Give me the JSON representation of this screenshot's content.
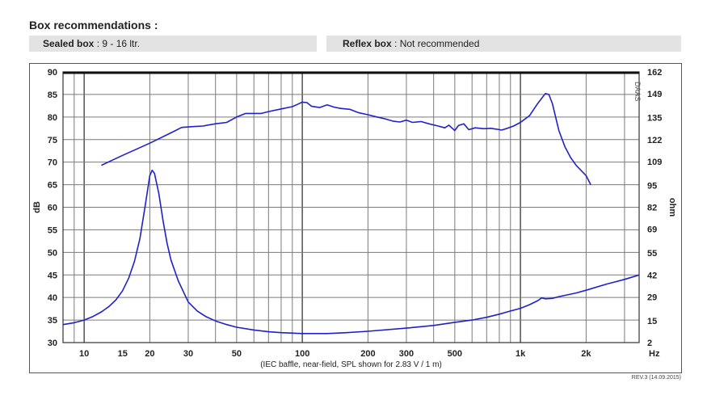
{
  "heading": "Box  recommendations :",
  "sealed": {
    "label": "Sealed box",
    "value": " : 9 - 16 ltr."
  },
  "reflex": {
    "label": "Reflex box",
    "value": " : Not recommended"
  },
  "revision": "REV.3 (14.09.2015)",
  "chart_data": {
    "type": "line",
    "xscale": "log",
    "xlim": [
      8,
      3500
    ],
    "ylim_left": [
      30,
      90
    ],
    "ylim_right": [
      2,
      162
    ],
    "ylabel_left": "dB",
    "ylabel_right": "ohm",
    "xunit": "Hz",
    "caption": "(IEC baffle, near-field, SPL shown for 2.83 V / 1 m)",
    "watermark": "DAAS",
    "x_ticks": [
      {
        "value": 10,
        "label": "10"
      },
      {
        "value": 15,
        "label": "15"
      },
      {
        "value": 20,
        "label": "20"
      },
      {
        "value": 30,
        "label": "30"
      },
      {
        "value": 50,
        "label": "50"
      },
      {
        "value": 100,
        "label": "100"
      },
      {
        "value": 200,
        "label": "200"
      },
      {
        "value": 300,
        "label": "300"
      },
      {
        "value": 500,
        "label": "500"
      },
      {
        "value": 1000,
        "label": "1k"
      },
      {
        "value": 2000,
        "label": "2k"
      }
    ],
    "y_ticks_left": [
      90,
      85,
      80,
      75,
      70,
      65,
      60,
      55,
      50,
      45,
      40,
      35,
      30
    ],
    "y_ticks_right": [
      {
        "value": 162,
        "label": "162"
      },
      {
        "value": 149,
        "label": "149"
      },
      {
        "value": 135,
        "label": "135"
      },
      {
        "value": 122,
        "label": "122"
      },
      {
        "value": 109,
        "label": "109"
      },
      {
        "value": 95,
        "label": "95"
      },
      {
        "value": 82,
        "label": "82"
      },
      {
        "value": 69,
        "label": "69"
      },
      {
        "value": 55,
        "label": "55"
      },
      {
        "value": 42,
        "label": "42"
      },
      {
        "value": 29,
        "label": "29"
      },
      {
        "value": 15,
        "label": "15"
      },
      {
        "value": 2,
        "label": "2"
      }
    ],
    "grid": true,
    "series": [
      {
        "color": "#1e22c8",
        "axis": "left",
        "points": [
          [
            12,
            69.3
          ],
          [
            15,
            71.5
          ],
          [
            20,
            74.2
          ],
          [
            25,
            76.5
          ],
          [
            28,
            77.7
          ],
          [
            32,
            77.9
          ],
          [
            35,
            78
          ],
          [
            40,
            78.5
          ],
          [
            45,
            78.8
          ],
          [
            50,
            80
          ],
          [
            55,
            80.8
          ],
          [
            60,
            80.8
          ],
          [
            65,
            80.8
          ],
          [
            70,
            81.2
          ],
          [
            80,
            81.8
          ],
          [
            90,
            82.3
          ],
          [
            95,
            82.8
          ],
          [
            100,
            83.3
          ],
          [
            105,
            83.2
          ],
          [
            110,
            82.4
          ],
          [
            120,
            82.1
          ],
          [
            130,
            82.7
          ],
          [
            140,
            82.2
          ],
          [
            150,
            81.9
          ],
          [
            165,
            81.7
          ],
          [
            180,
            81
          ],
          [
            200,
            80.5
          ],
          [
            220,
            80
          ],
          [
            240,
            79.6
          ],
          [
            260,
            79.1
          ],
          [
            280,
            78.9
          ],
          [
            300,
            79.3
          ],
          [
            320,
            78.8
          ],
          [
            350,
            79
          ],
          [
            380,
            78.5
          ],
          [
            420,
            78
          ],
          [
            450,
            77.6
          ],
          [
            470,
            78.2
          ],
          [
            500,
            77
          ],
          [
            520,
            78.1
          ],
          [
            550,
            78.5
          ],
          [
            580,
            77.2
          ],
          [
            620,
            77.6
          ],
          [
            680,
            77.4
          ],
          [
            730,
            77.5
          ],
          [
            780,
            77.3
          ],
          [
            820,
            77.1
          ],
          [
            870,
            77.5
          ],
          [
            930,
            78
          ],
          [
            1000,
            78.8
          ],
          [
            1100,
            80.3
          ],
          [
            1200,
            83
          ],
          [
            1300,
            85.2
          ],
          [
            1350,
            85
          ],
          [
            1400,
            83
          ],
          [
            1500,
            77
          ],
          [
            1600,
            73.4
          ],
          [
            1700,
            71
          ],
          [
            1800,
            69.3
          ],
          [
            2000,
            67
          ],
          [
            2100,
            65
          ]
        ]
      },
      {
        "color": "#1e22c8",
        "axis": "left",
        "points": [
          [
            8,
            34
          ],
          [
            9,
            34.4
          ],
          [
            10,
            35
          ],
          [
            11,
            35.8
          ],
          [
            12,
            36.8
          ],
          [
            13,
            38
          ],
          [
            14,
            39.5
          ],
          [
            15,
            41.5
          ],
          [
            16,
            44.3
          ],
          [
            17,
            48
          ],
          [
            18,
            53
          ],
          [
            19,
            60
          ],
          [
            20,
            67
          ],
          [
            20.5,
            68.2
          ],
          [
            21,
            67.5
          ],
          [
            22,
            63
          ],
          [
            23,
            57
          ],
          [
            24,
            52
          ],
          [
            25,
            48.3
          ],
          [
            27,
            43.7
          ],
          [
            30,
            39
          ],
          [
            33,
            37
          ],
          [
            36,
            35.8
          ],
          [
            40,
            34.8
          ],
          [
            45,
            34
          ],
          [
            50,
            33.4
          ],
          [
            60,
            32.8
          ],
          [
            70,
            32.4
          ],
          [
            80,
            32.2
          ],
          [
            100,
            32
          ],
          [
            130,
            32
          ],
          [
            160,
            32.2
          ],
          [
            200,
            32.5
          ],
          [
            300,
            33.2
          ],
          [
            400,
            33.8
          ],
          [
            500,
            34.5
          ],
          [
            600,
            35
          ],
          [
            700,
            35.6
          ],
          [
            800,
            36.3
          ],
          [
            900,
            37
          ],
          [
            1000,
            37.6
          ],
          [
            1100,
            38.4
          ],
          [
            1200,
            39.3
          ],
          [
            1250,
            39.9
          ],
          [
            1300,
            39.7
          ],
          [
            1400,
            39.8
          ],
          [
            1500,
            40.2
          ],
          [
            1800,
            41
          ],
          [
            2000,
            41.6
          ],
          [
            2500,
            43
          ],
          [
            3000,
            44
          ],
          [
            3500,
            45
          ]
        ]
      }
    ]
  }
}
